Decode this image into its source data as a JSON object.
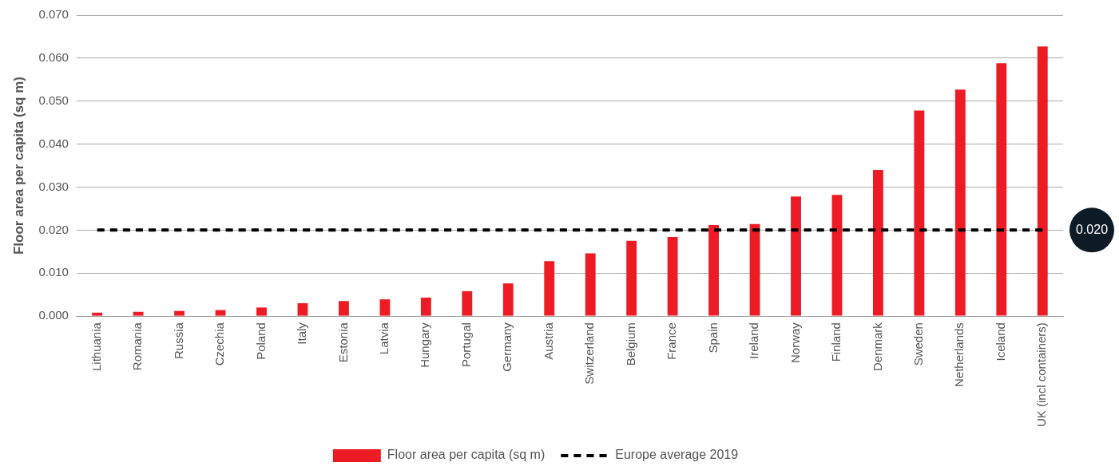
{
  "chart_data": {
    "type": "bar",
    "ylabel": "Floor area per capita (sq m)",
    "categories": [
      "Lithuania",
      "Romania",
      "Russia",
      "Czechia",
      "Poland",
      "Italy",
      "Estonia",
      "Latvia",
      "Hungary",
      "Portugal",
      "Germany",
      "Austria",
      "Switzerland",
      "Belgium",
      "France",
      "Spain",
      "Ireland",
      "Norway",
      "Finland",
      "Denmark",
      "Sweden",
      "Netherlands",
      "Iceland",
      "UK (incl containers)"
    ],
    "series": [
      {
        "name": "Floor area per capita (sq m)",
        "color": "#ed1c24",
        "values": [
          0.0008,
          0.001,
          0.0012,
          0.0014,
          0.002,
          0.003,
          0.0035,
          0.0039,
          0.0043,
          0.0058,
          0.0076,
          0.0128,
          0.0146,
          0.0175,
          0.0184,
          0.0212,
          0.0214,
          0.0278,
          0.0282,
          0.034,
          0.0478,
          0.0527,
          0.0588,
          0.0627
        ]
      },
      {
        "name": "Europe average 2019",
        "type": "line",
        "color": "#000000",
        "line_style": "dashed",
        "marker": "none",
        "values": [
          0.02,
          0.02,
          0.02,
          0.02,
          0.02,
          0.02,
          0.02,
          0.02,
          0.02,
          0.02,
          0.02,
          0.02,
          0.02,
          0.02,
          0.02,
          0.02,
          0.02,
          0.02,
          0.02,
          0.02,
          0.02,
          0.02,
          0.02,
          0.02
        ]
      }
    ],
    "ylim": [
      0,
      0.07
    ],
    "yticks": [
      {
        "value": 0,
        "label": "0.000"
      },
      {
        "value": 0.01,
        "label": "0.010"
      },
      {
        "value": 0.02,
        "label": "0.020"
      },
      {
        "value": 0.03,
        "label": "0.030"
      },
      {
        "value": 0.04,
        "label": "0.040"
      },
      {
        "value": 0.05,
        "label": "0.050"
      },
      {
        "value": 0.06,
        "label": "0.060"
      },
      {
        "value": 0.07,
        "label": "0.070"
      }
    ],
    "annotations": [
      {
        "text": "0.020",
        "x": "UK (incl containers)",
        "y": 0.02
      }
    ],
    "grid": "y",
    "legend": "bottom"
  }
}
